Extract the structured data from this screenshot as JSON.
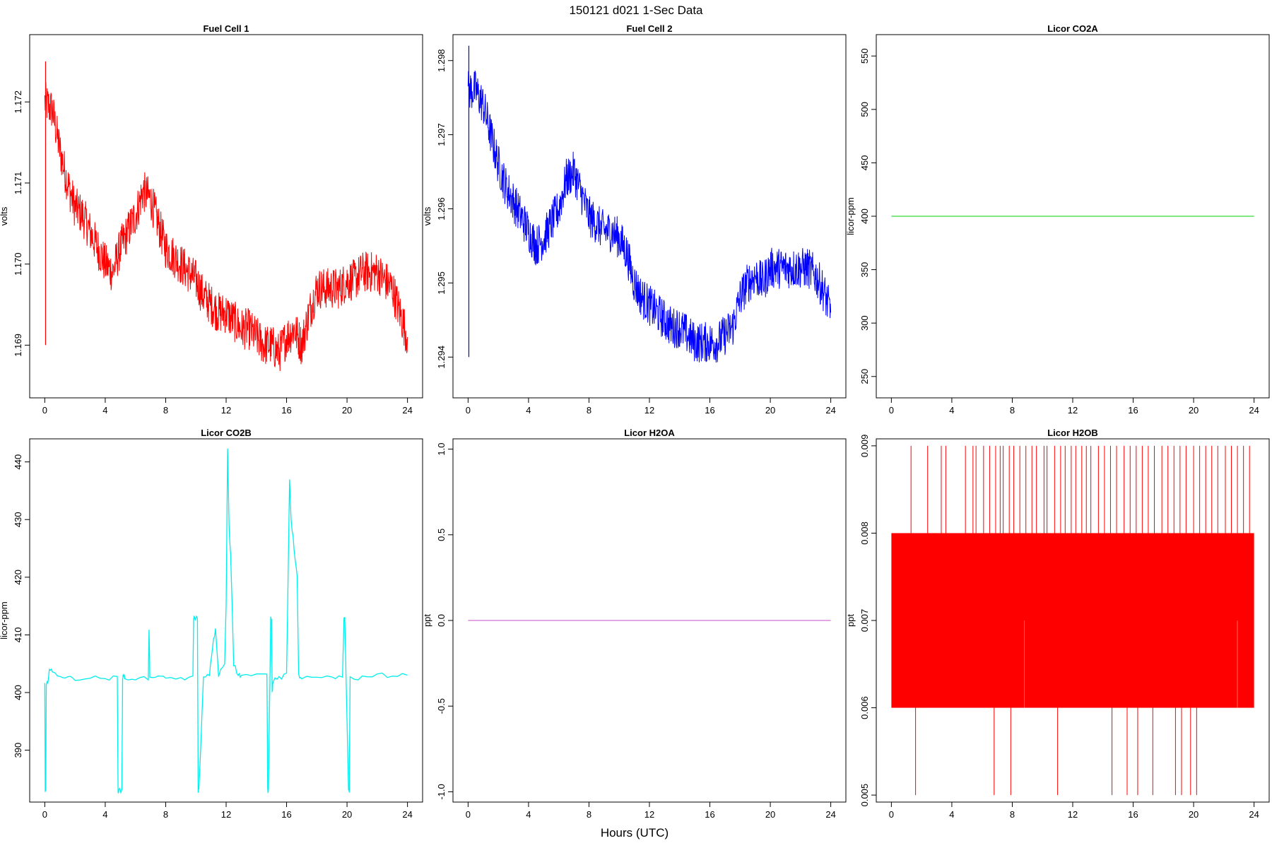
{
  "figure": {
    "title": "150121   d021   1-Sec Data",
    "xlabel": "Hours (UTC)"
  },
  "chart_data": [
    {
      "type": "line",
      "title": "Fuel Cell 1",
      "ylabel": "volts",
      "color": "#ff0000",
      "xlim": [
        -1,
        25
      ],
      "ylim": [
        1.16835,
        1.17283
      ],
      "xticks": [
        0,
        4,
        8,
        12,
        16,
        20,
        24
      ],
      "yticks": [
        1.169,
        1.17,
        1.171,
        1.172
      ],
      "ytick_labels": [
        "1.169",
        "1.170",
        "1.171",
        "1.172"
      ],
      "x": [
        0,
        0.5,
        1,
        1.5,
        2,
        2.5,
        3,
        3.5,
        4,
        4.5,
        5,
        5.5,
        6,
        6.5,
        7,
        7.5,
        8,
        8.5,
        9,
        9.5,
        10,
        10.5,
        11,
        11.5,
        12,
        12.5,
        13,
        13.5,
        14,
        14.5,
        15,
        15.5,
        16,
        16.5,
        17,
        17.5,
        18,
        18.5,
        19,
        19.5,
        20,
        20.5,
        21,
        21.5,
        22,
        22.5,
        23,
        23.5,
        24
      ],
      "y": [
        1.172,
        1.1719,
        1.1714,
        1.171,
        1.1707,
        1.1706,
        1.1704,
        1.1702,
        1.17,
        1.1699,
        1.1702,
        1.1704,
        1.1706,
        1.1709,
        1.1708,
        1.1705,
        1.1702,
        1.1701,
        1.17,
        1.1699,
        1.1698,
        1.1696,
        1.1695,
        1.1694,
        1.1694,
        1.1693,
        1.1692,
        1.1692,
        1.1691,
        1.169,
        1.169,
        1.1689,
        1.1691,
        1.1692,
        1.169,
        1.1694,
        1.1697,
        1.1697,
        1.1697,
        1.1697,
        1.1698,
        1.1698,
        1.1699,
        1.1699,
        1.1699,
        1.1698,
        1.1697,
        1.1694,
        1.1691
      ],
      "noise": 0.00026
    },
    {
      "type": "line",
      "title": "Fuel Cell 2",
      "ylabel": "volts",
      "color": "#0000ff",
      "xlim": [
        -1,
        25
      ],
      "ylim": [
        1.29345,
        1.29835
      ],
      "xticks": [
        0,
        4,
        8,
        12,
        16,
        20,
        24
      ],
      "yticks": [
        1.294,
        1.295,
        1.296,
        1.297,
        1.298
      ],
      "ytick_labels": [
        "1.294",
        "1.295",
        "1.296",
        "1.297",
        "1.298"
      ],
      "x": [
        0,
        0.5,
        1,
        1.5,
        2,
        2.5,
        3,
        3.5,
        4,
        4.5,
        5,
        5.5,
        6,
        6.5,
        7,
        7.5,
        8,
        8.5,
        9,
        9.5,
        10,
        10.5,
        11,
        11.5,
        12,
        12.5,
        13,
        13.5,
        14,
        14.5,
        15,
        15.5,
        16,
        16.5,
        17,
        17.5,
        18,
        18.5,
        19,
        19.5,
        20,
        20.5,
        21,
        21.5,
        22,
        22.5,
        23,
        23.5,
        24
      ],
      "y": [
        1.2976,
        1.2976,
        1.2974,
        1.297,
        1.2966,
        1.2963,
        1.2961,
        1.2959,
        1.2957,
        1.2955,
        1.2956,
        1.2958,
        1.296,
        1.2964,
        1.2965,
        1.2962,
        1.2959,
        1.2958,
        1.2957,
        1.2957,
        1.2956,
        1.2954,
        1.295,
        1.2948,
        1.2947,
        1.2946,
        1.2945,
        1.2944,
        1.2944,
        1.2943,
        1.2942,
        1.2942,
        1.2942,
        1.2942,
        1.2943,
        1.2944,
        1.2948,
        1.295,
        1.2951,
        1.295,
        1.2952,
        1.2952,
        1.2952,
        1.2952,
        1.2952,
        1.2952,
        1.2951,
        1.2949,
        1.2946
      ],
      "noise": 0.00028
    },
    {
      "type": "line",
      "title": "Licor CO2A",
      "ylabel": "licor-ppm",
      "color": "#33dd33",
      "xlim": [
        -1,
        25
      ],
      "ylim": [
        230,
        570
      ],
      "xticks": [
        0,
        4,
        8,
        12,
        16,
        20,
        24
      ],
      "yticks": [
        250,
        300,
        350,
        400,
        450,
        500,
        550
      ],
      "ytick_labels": [
        "250",
        "300",
        "350",
        "400",
        "450",
        "500",
        "550"
      ],
      "x": [
        0,
        24
      ],
      "y": [
        400,
        400
      ],
      "noise": 0
    },
    {
      "type": "line",
      "title": "Licor CO2B",
      "ylabel": "licor-ppm",
      "color": "#00eeee",
      "xlim": [
        -1,
        25
      ],
      "ylim": [
        381,
        444
      ],
      "xticks": [
        0,
        4,
        8,
        12,
        16,
        20,
        24
      ],
      "yticks": [
        390,
        400,
        410,
        420,
        430,
        440
      ],
      "ytick_labels": [
        "390",
        "400",
        "410",
        "420",
        "430",
        "440"
      ],
      "x": [
        0,
        0.03,
        0.06,
        0.1,
        0.2,
        0.3,
        0.5,
        1,
        1.5,
        2,
        3,
        4,
        4.8,
        4.85,
        4.9,
        5.1,
        5.15,
        5.2,
        5.3,
        6,
        6.85,
        6.9,
        6.95,
        7.5,
        8,
        9,
        9.8,
        9.85,
        9.9,
        10.1,
        10.15,
        10.2,
        10.5,
        10.9,
        11.1,
        11.3,
        11.5,
        11.9,
        12.0,
        12.1,
        12.2,
        12.3,
        12.4,
        12.5,
        12.8,
        13,
        14,
        14.7,
        14.75,
        14.8,
        14.95,
        15.0,
        15.05,
        15.1,
        15.5,
        16.0,
        16.2,
        16.3,
        16.5,
        16.7,
        16.8,
        17,
        18,
        19,
        19.7,
        19.8,
        19.85,
        20.1,
        20.15,
        20.2,
        21,
        22,
        23,
        24
      ],
      "y": [
        402,
        383,
        383,
        401,
        402,
        404,
        403.5,
        403,
        402.5,
        402.5,
        402.5,
        402.5,
        402.5,
        383,
        383,
        383,
        402.5,
        403,
        402.5,
        402.5,
        402.5,
        411,
        403,
        402.5,
        402.5,
        402.5,
        402.5,
        413,
        413,
        413,
        383,
        383,
        402.5,
        403,
        408,
        411,
        403,
        405,
        415,
        442,
        428,
        424,
        415,
        405,
        403,
        403,
        403,
        403,
        383,
        383,
        413,
        413,
        400,
        402,
        402.5,
        403,
        437,
        430,
        425,
        420,
        403,
        402.5,
        402.5,
        402.5,
        402.5,
        413,
        413,
        383,
        383,
        402.5,
        402.5,
        403,
        403,
        403
      ],
      "noise": 0.4
    },
    {
      "type": "line",
      "title": "Licor H2OA",
      "ylabel": "ppt",
      "color": "#d070d0",
      "xlim": [
        -1,
        25
      ],
      "ylim": [
        -1.06,
        1.06
      ],
      "xticks": [
        0,
        4,
        8,
        12,
        16,
        20,
        24
      ],
      "yticks": [
        -1.0,
        -0.5,
        0.0,
        0.5,
        1.0
      ],
      "ytick_labels": [
        "-1.0",
        "-0.5",
        "0.0",
        "0.5",
        "1.0"
      ],
      "x": [
        0,
        24
      ],
      "y": [
        0,
        0
      ],
      "noise": 0
    },
    {
      "type": "line",
      "title": "Licor H2OB",
      "ylabel": "ppt",
      "color": "#ff0000",
      "xlim": [
        -1,
        25
      ],
      "ylim": [
        0.00492,
        0.00908
      ],
      "xticks": [
        0,
        4,
        8,
        12,
        16,
        20,
        24
      ],
      "yticks": [
        0.005,
        0.006,
        0.007,
        0.008,
        0.009
      ],
      "ytick_labels": [
        "0.005",
        "0.006",
        "0.007",
        "0.008",
        "0.009"
      ],
      "band": [
        0.006,
        0.008
      ],
      "x": [
        0,
        24
      ],
      "y": [
        0.006,
        0.008
      ],
      "spikes_up_to": 0.009,
      "spikes_down_to": 0.005,
      "spike_up_x": [
        1.3,
        2.4,
        3.3,
        3.6,
        4.9,
        5.4,
        5.6,
        6.1,
        6.5,
        6.9,
        7.2,
        7.4,
        7.8,
        8.1,
        8.5,
        8.9,
        9.3,
        9.6,
        10.1,
        10.3,
        10.8,
        11.2,
        11.5,
        11.9,
        12.2,
        12.6,
        12.9,
        13.2,
        13.7,
        14.1,
        14.5,
        14.9,
        15.4,
        15.8,
        16.2,
        16.6,
        17.0,
        17.4,
        17.9,
        18.3,
        18.7,
        19.1,
        19.5,
        20.0,
        20.4,
        20.8,
        21.2,
        21.6,
        22.1,
        22.5,
        22.9,
        23.3,
        23.7
      ],
      "spike_down_x": [
        1.6,
        6.8,
        7.9,
        11.0,
        14.6,
        15.6,
        16.3,
        17.3,
        18.8,
        19.2,
        19.8,
        20.2
      ],
      "inner_down_x": [
        8.8,
        22.9
      ]
    }
  ]
}
